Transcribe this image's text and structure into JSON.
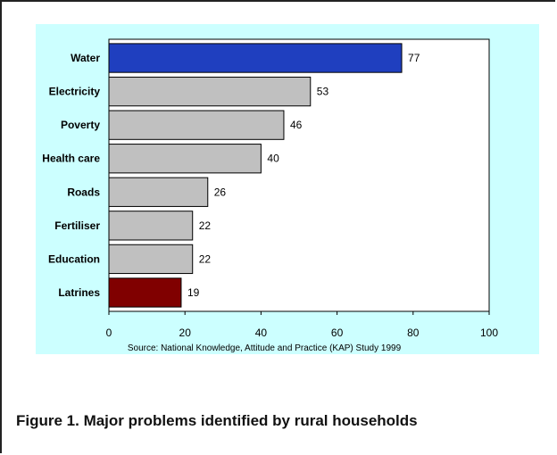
{
  "chart_data": {
    "type": "bar",
    "orientation": "horizontal",
    "categories": [
      "Water",
      "Electricity",
      "Poverty",
      "Health care",
      "Roads",
      "Fertiliser",
      "Education",
      "Latrines"
    ],
    "values": [
      77,
      53,
      46,
      40,
      26,
      22,
      22,
      19
    ],
    "bar_colors": [
      "#1f3fbf",
      "#c0c0c0",
      "#c0c0c0",
      "#c0c0c0",
      "#c0c0c0",
      "#c0c0c0",
      "#c0c0c0",
      "#800000"
    ],
    "data_labels": [
      "77",
      "53",
      "46",
      "40",
      "26",
      "22",
      "22",
      "19"
    ],
    "xlim": [
      0,
      100
    ],
    "x_ticks": [
      "0",
      "20",
      "40",
      "60",
      "80",
      "100"
    ],
    "grid": false,
    "legend": "none",
    "source_note": "Source: National Knowledge, Attitude and Practice (KAP) Study 1999"
  },
  "caption": "Figure 1. Major problems identified by rural households",
  "colors": {
    "chart_background": "#ccffff",
    "plot_background": "#ffffff"
  }
}
